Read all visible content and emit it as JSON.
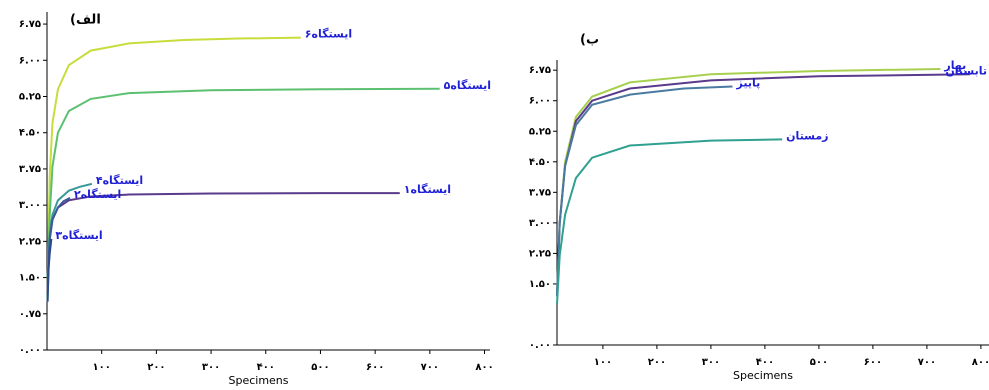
{
  "chart_data": [
    {
      "type": "line",
      "title": "(الف",
      "xlabel": "Specimens",
      "xlim": [
        0,
        810
      ],
      "ylim": [
        0,
        7
      ],
      "xticks": [
        {
          "value": 100,
          "label": "۱۰۰"
        },
        {
          "value": 200,
          "label": "۲۰۰"
        },
        {
          "value": 300,
          "label": "۳۰۰"
        },
        {
          "value": 400,
          "label": "۴۰۰"
        },
        {
          "value": 500,
          "label": "۵۰۰"
        },
        {
          "value": 600,
          "label": "۶۰۰"
        },
        {
          "value": 700,
          "label": "۷۰۰"
        },
        {
          "value": 800,
          "label": "۸۰۰"
        }
      ],
      "yticks": [
        {
          "value": 0,
          "label": "۰.۰۰"
        },
        {
          "value": 0.75,
          "label": "۰.۷۵"
        },
        {
          "value": 1.5,
          "label": "۱.۵۰"
        },
        {
          "value": 2.25,
          "label": "۲.۲۵"
        },
        {
          "value": 3,
          "label": "۳.۰۰"
        },
        {
          "value": 3.75,
          "label": "۳.۷۵"
        },
        {
          "value": 4.5,
          "label": "۴.۵۰"
        },
        {
          "value": 5.25,
          "label": "۵.۲۵"
        },
        {
          "value": 6,
          "label": "۶.۰۰"
        },
        {
          "value": 6.75,
          "label": "۶.۷۵"
        }
      ],
      "series": [
        {
          "name": "ایستگاه۶",
          "color": "#c8dc3c",
          "x": [
            1,
            5,
            10,
            20,
            40,
            80,
            150,
            250,
            350,
            464
          ],
          "values": [
            1.2,
            3.6,
            4.7,
            5.4,
            5.9,
            6.2,
            6.35,
            6.42,
            6.45,
            6.47
          ]
        },
        {
          "name": "ایستگاه۵",
          "color": "#5cc070",
          "x": [
            1,
            5,
            10,
            20,
            40,
            80,
            150,
            300,
            500,
            718
          ],
          "values": [
            1.0,
            2.8,
            3.8,
            4.5,
            4.95,
            5.2,
            5.32,
            5.38,
            5.4,
            5.41
          ]
        },
        {
          "name": "ایستگاه۴",
          "color": "#3a9a9a",
          "x": [
            1,
            5,
            10,
            20,
            40,
            60,
            82
          ],
          "values": [
            1.5,
            2.4,
            2.8,
            3.1,
            3.3,
            3.38,
            3.44
          ]
        },
        {
          "name": "ایستگاه۱",
          "color": "#5a3a8a",
          "x": [
            1,
            5,
            10,
            20,
            40,
            80,
            150,
            300,
            500,
            645
          ],
          "values": [
            1.2,
            2.3,
            2.7,
            2.95,
            3.1,
            3.18,
            3.22,
            3.24,
            3.25,
            3.25
          ]
        },
        {
          "name": "ایستگاه۲",
          "color": "#3a5a9a",
          "x": [
            1,
            5,
            10,
            20,
            30,
            42
          ],
          "values": [
            1.3,
            2.3,
            2.7,
            2.95,
            3.08,
            3.15
          ]
        },
        {
          "name": "ایستگاه۳",
          "color": "#2a4a8a",
          "x": [
            1,
            3,
            5,
            8
          ],
          "values": [
            1.0,
            1.7,
            2.0,
            2.3
          ]
        }
      ]
    },
    {
      "type": "line",
      "title": "(ب",
      "xlabel": "Specimens",
      "xlim": [
        15,
        815
      ],
      "ylim": [
        0,
        7
      ],
      "xticks": [
        {
          "value": 100,
          "label": "۱۰۰"
        },
        {
          "value": 200,
          "label": "۲۰۰"
        },
        {
          "value": 300,
          "label": "۳۰۰"
        },
        {
          "value": 400,
          "label": "۴۰۰"
        },
        {
          "value": 500,
          "label": "۵۰۰"
        },
        {
          "value": 600,
          "label": "۶۰۰"
        },
        {
          "value": 700,
          "label": "۷۰۰"
        },
        {
          "value": 800,
          "label": "۸۰۰"
        }
      ],
      "yticks": [
        {
          "value": 0,
          "label": "۰.۰۰"
        },
        {
          "value": 1.5,
          "label": "۱.۵۰"
        },
        {
          "value": 2.25,
          "label": "۲.۲۵"
        },
        {
          "value": 3,
          "label": "۳.۰۰"
        },
        {
          "value": 3.75,
          "label": "۳.۷۵"
        },
        {
          "value": 4.5,
          "label": "۴.۵۰"
        },
        {
          "value": 5.25,
          "label": "۵.۲۵"
        },
        {
          "value": 6,
          "label": "۶.۰۰"
        },
        {
          "value": 6.75,
          "label": "۶.۷۵"
        }
      ],
      "series": [
        {
          "name": "بهار",
          "color": "#a8d050",
          "x": [
            15,
            20,
            30,
            50,
            80,
            150,
            300,
            500,
            725
          ],
          "values": [
            1.2,
            3.0,
            4.5,
            5.6,
            6.1,
            6.45,
            6.65,
            6.73,
            6.78
          ]
        },
        {
          "name": "تابستان",
          "color": "#5a3a8a",
          "x": [
            15,
            20,
            30,
            50,
            80,
            150,
            300,
            500,
            780
          ],
          "values": [
            1.2,
            3.0,
            4.4,
            5.5,
            6.0,
            6.3,
            6.5,
            6.6,
            6.65
          ]
        },
        {
          "name": "پاییز",
          "color": "#4a7aa0",
          "x": [
            15,
            20,
            30,
            50,
            80,
            150,
            250,
            340
          ],
          "values": [
            1.2,
            3.0,
            4.4,
            5.4,
            5.9,
            6.15,
            6.3,
            6.35
          ]
        },
        {
          "name": "زمستان",
          "color": "#30a090",
          "x": [
            15,
            20,
            30,
            50,
            80,
            150,
            300,
            432
          ],
          "values": [
            1.0,
            2.2,
            3.2,
            4.1,
            4.6,
            4.9,
            5.02,
            5.05
          ]
        }
      ]
    }
  ]
}
